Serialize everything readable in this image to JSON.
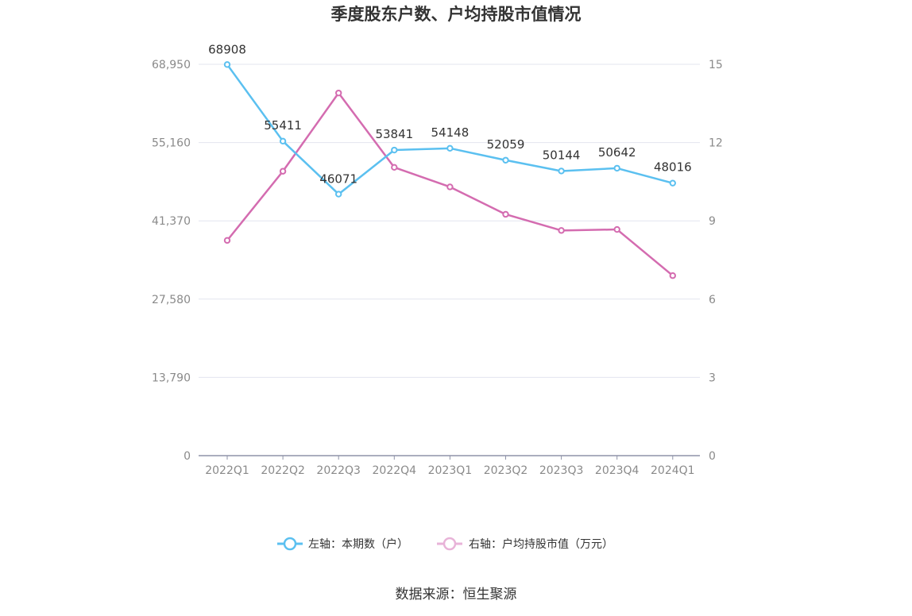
{
  "chart_data": {
    "type": "line",
    "title": "季度股东户数、户均持股市值情况",
    "categories": [
      "2022Q1",
      "2022Q2",
      "2022Q3",
      "2022Q4",
      "2023Q1",
      "2023Q2",
      "2023Q3",
      "2023Q4",
      "2024Q1"
    ],
    "left_axis": {
      "ticks": [
        "0",
        "13,790",
        "27,580",
        "41,370",
        "55,160",
        "68,950"
      ],
      "min": 0,
      "max": 68950
    },
    "right_axis": {
      "ticks": [
        "0",
        "3",
        "6",
        "9",
        "12",
        "15"
      ],
      "min": 0,
      "max": 15
    },
    "series": [
      {
        "name": "左轴：本期数（户）",
        "axis": "left",
        "color": "#5bc0f0",
        "values": [
          68908,
          55411,
          46071,
          53841,
          54148,
          52059,
          50144,
          50642,
          48016
        ],
        "labels": [
          "68908",
          "55411",
          "46071",
          "53841",
          "54148",
          "52059",
          "50144",
          "50642",
          "48016"
        ]
      },
      {
        "name": "右轴：户均持股市值（万元）",
        "axis": "right",
        "color": "#d46cb0",
        "values": [
          8.25,
          10.9,
          13.9,
          11.05,
          10.3,
          9.25,
          8.63,
          8.67,
          6.9
        ]
      }
    ],
    "grid": true,
    "legend_position": "bottom",
    "source": "数据来源：恒生聚源"
  }
}
